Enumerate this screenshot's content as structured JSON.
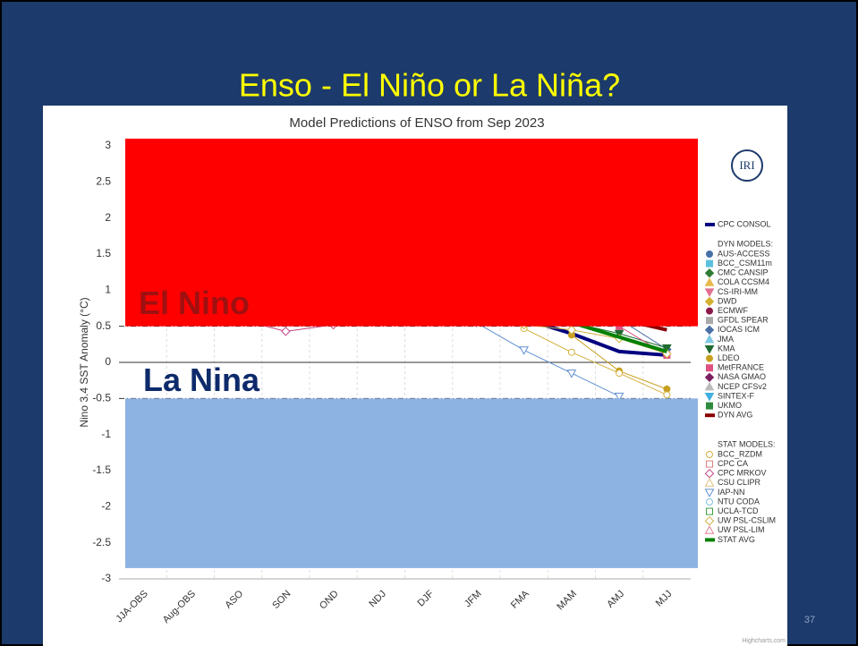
{
  "slide_title": "Enso - El Niño or La Niña?",
  "page_number": "37",
  "credit": "Highcharts.com",
  "logo": "IRI",
  "chart_data": {
    "type": "line",
    "title": "Model Predictions of ENSO from Sep 2023",
    "y_label": "Nino 3.4 SST Anomaly (°C)",
    "categories": [
      "JJA-OBS",
      "Aug-OBS",
      "ASO",
      "SON",
      "OND",
      "NDJ",
      "DJF",
      "JFM",
      "FMA",
      "MAM",
      "AMJ",
      "MJJ"
    ],
    "ylim": [
      -3,
      3
    ],
    "yticks": [
      -3,
      -2.5,
      -2,
      -1.5,
      -1,
      -0.5,
      0,
      0.5,
      1,
      1.5,
      2,
      2.5,
      3
    ],
    "bands": [
      {
        "label": "El Nino",
        "from": 0.5,
        "to": 3.1,
        "color": "#ff0000",
        "text_color": "#a01010"
      },
      {
        "label": "La Nina",
        "from": -2.85,
        "to": -0.5,
        "color": "#8db3e2",
        "text_color": "#0d2a6b"
      }
    ],
    "legend_headings": [
      "DYN MODELS:",
      "STAT MODELS:"
    ],
    "series": [
      {
        "name": "CPC CONSOL",
        "color": "#000080",
        "marker": "line",
        "values": [
          null,
          null,
          null,
          null,
          null,
          null,
          null,
          null,
          0.6,
          0.4,
          0.15,
          0.1
        ]
      },
      {
        "name": "AUS-ACCESS",
        "color": "#4572a7",
        "marker": "circle",
        "values": [
          null,
          null,
          null,
          null,
          null,
          null,
          null,
          null,
          null,
          null,
          null,
          null
        ]
      },
      {
        "name": "BCC_CSM11m",
        "color": "#5bc0de",
        "marker": "square",
        "values": [
          null,
          null,
          null,
          null,
          null,
          null,
          null,
          null,
          null,
          null,
          null,
          null
        ]
      },
      {
        "name": "CMC CANSIP",
        "color": "#2e7d32",
        "marker": "diamond",
        "values": [
          null,
          null,
          null,
          null,
          null,
          null,
          null,
          null,
          null,
          null,
          null,
          null
        ]
      },
      {
        "name": "COLA CCSM4",
        "color": "#e8b84a",
        "marker": "triangle",
        "values": [
          null,
          null,
          null,
          null,
          null,
          null,
          null,
          null,
          null,
          null,
          null,
          null
        ]
      },
      {
        "name": "CS-IRI-MM",
        "color": "#e07090",
        "marker": "triangle-down",
        "values": [
          null,
          null,
          null,
          null,
          null,
          null,
          null,
          null,
          null,
          null,
          0.5,
          null
        ]
      },
      {
        "name": "DWD",
        "color": "#d4b030",
        "marker": "diamond",
        "values": [
          null,
          null,
          null,
          null,
          null,
          null,
          null,
          null,
          null,
          null,
          null,
          null
        ]
      },
      {
        "name": "ECMWF",
        "color": "#8b1a4a",
        "marker": "circle",
        "values": [
          null,
          null,
          null,
          null,
          null,
          null,
          null,
          null,
          null,
          null,
          null,
          null
        ]
      },
      {
        "name": "GFDL SPEAR",
        "color": "#aaaaaa",
        "marker": "square",
        "values": [
          null,
          null,
          null,
          null,
          null,
          null,
          null,
          null,
          null,
          null,
          null,
          null
        ]
      },
      {
        "name": "IOCAS ICM",
        "color": "#4a6fa5",
        "marker": "diamond",
        "values": [
          null,
          null,
          null,
          null,
          null,
          null,
          null,
          null,
          null,
          null,
          0.6,
          0.18
        ]
      },
      {
        "name": "JMA",
        "color": "#7ec8e3",
        "marker": "triangle",
        "values": [
          null,
          null,
          null,
          null,
          null,
          null,
          null,
          null,
          null,
          null,
          null,
          null
        ]
      },
      {
        "name": "KMA",
        "color": "#1e6b30",
        "marker": "triangle-down",
        "values": [
          null,
          null,
          null,
          null,
          null,
          null,
          null,
          null,
          null,
          0.55,
          0.4,
          0.2
        ]
      },
      {
        "name": "LDEO",
        "color": "#c8a020",
        "marker": "circle",
        "values": [
          null,
          null,
          null,
          null,
          null,
          null,
          null,
          null,
          null,
          0.38,
          -0.12,
          -0.37
        ]
      },
      {
        "name": "MetFRANCE",
        "color": "#e05080",
        "marker": "square",
        "values": [
          null,
          null,
          null,
          null,
          null,
          null,
          null,
          null,
          null,
          null,
          0.5,
          0.1
        ]
      },
      {
        "name": "NASA GMAO",
        "color": "#7a2060",
        "marker": "diamond",
        "values": [
          null,
          null,
          null,
          null,
          null,
          null,
          null,
          null,
          null,
          null,
          null,
          null
        ]
      },
      {
        "name": "NCEP CFSv2",
        "color": "#bbbbbb",
        "marker": "triangle",
        "values": [
          null,
          null,
          null,
          null,
          null,
          null,
          null,
          null,
          null,
          null,
          null,
          null
        ]
      },
      {
        "name": "SINTEX-F",
        "color": "#40b0e0",
        "marker": "triangle-down",
        "values": [
          null,
          null,
          null,
          null,
          null,
          null,
          null,
          null,
          null,
          null,
          null,
          null
        ]
      },
      {
        "name": "UKMO",
        "color": "#2e8b3e",
        "marker": "square",
        "values": [
          null,
          null,
          null,
          null,
          null,
          null,
          null,
          null,
          null,
          null,
          null,
          null
        ]
      },
      {
        "name": "DYN AVG",
        "color": "#8b0000",
        "marker": "line",
        "values": [
          null,
          null,
          null,
          null,
          null,
          null,
          null,
          null,
          null,
          null,
          0.6,
          0.45
        ]
      },
      {
        "name": "BCC_RZDM",
        "color": "#d4b040",
        "marker": "circle-open",
        "values": [
          null,
          null,
          null,
          null,
          null,
          null,
          null,
          null,
          0.47,
          0.14,
          -0.15,
          -0.45
        ]
      },
      {
        "name": "CPC CA",
        "color": "#e08080",
        "marker": "square-open",
        "values": [
          null,
          null,
          null,
          null,
          null,
          null,
          null,
          null,
          null,
          null,
          null,
          null
        ]
      },
      {
        "name": "CPC MRKOV",
        "color": "#c04080",
        "marker": "diamond-open",
        "values": [
          null,
          null,
          0.6,
          0.43,
          0.52,
          null,
          null,
          null,
          null,
          null,
          null,
          null
        ]
      },
      {
        "name": "CSU CLIPR",
        "color": "#e0c080",
        "marker": "triangle-open",
        "values": [
          null,
          null,
          null,
          null,
          null,
          null,
          null,
          null,
          null,
          null,
          null,
          null
        ]
      },
      {
        "name": "IAP-NN",
        "color": "#6090d0",
        "marker": "triangle-down-open",
        "values": [
          null,
          null,
          null,
          null,
          null,
          null,
          null,
          0.55,
          0.17,
          -0.15,
          -0.47,
          null
        ]
      },
      {
        "name": "NTU CODA",
        "color": "#80c0e0",
        "marker": "circle-open",
        "values": [
          null,
          null,
          null,
          null,
          null,
          null,
          null,
          null,
          null,
          null,
          null,
          null
        ]
      },
      {
        "name": "UCLA-TCD",
        "color": "#40a040",
        "marker": "square-open",
        "values": [
          null,
          null,
          null,
          null,
          null,
          null,
          null,
          null,
          null,
          null,
          null,
          null
        ]
      },
      {
        "name": "UW PSL-CSLIM",
        "color": "#d0b040",
        "marker": "diamond-open",
        "values": [
          null,
          null,
          null,
          null,
          null,
          null,
          null,
          null,
          0.52,
          0.45,
          0.33,
          0.12
        ]
      },
      {
        "name": "UW PSL-LIM",
        "color": "#e08090",
        "marker": "triangle-open",
        "values": [
          null,
          null,
          null,
          null,
          null,
          null,
          null,
          null,
          null,
          null,
          null,
          null
        ]
      },
      {
        "name": "STAT AVG",
        "color": "#008000",
        "marker": "line",
        "values": [
          null,
          null,
          null,
          null,
          null,
          null,
          null,
          null,
          null,
          0.55,
          0.35,
          0.15
        ]
      }
    ]
  }
}
